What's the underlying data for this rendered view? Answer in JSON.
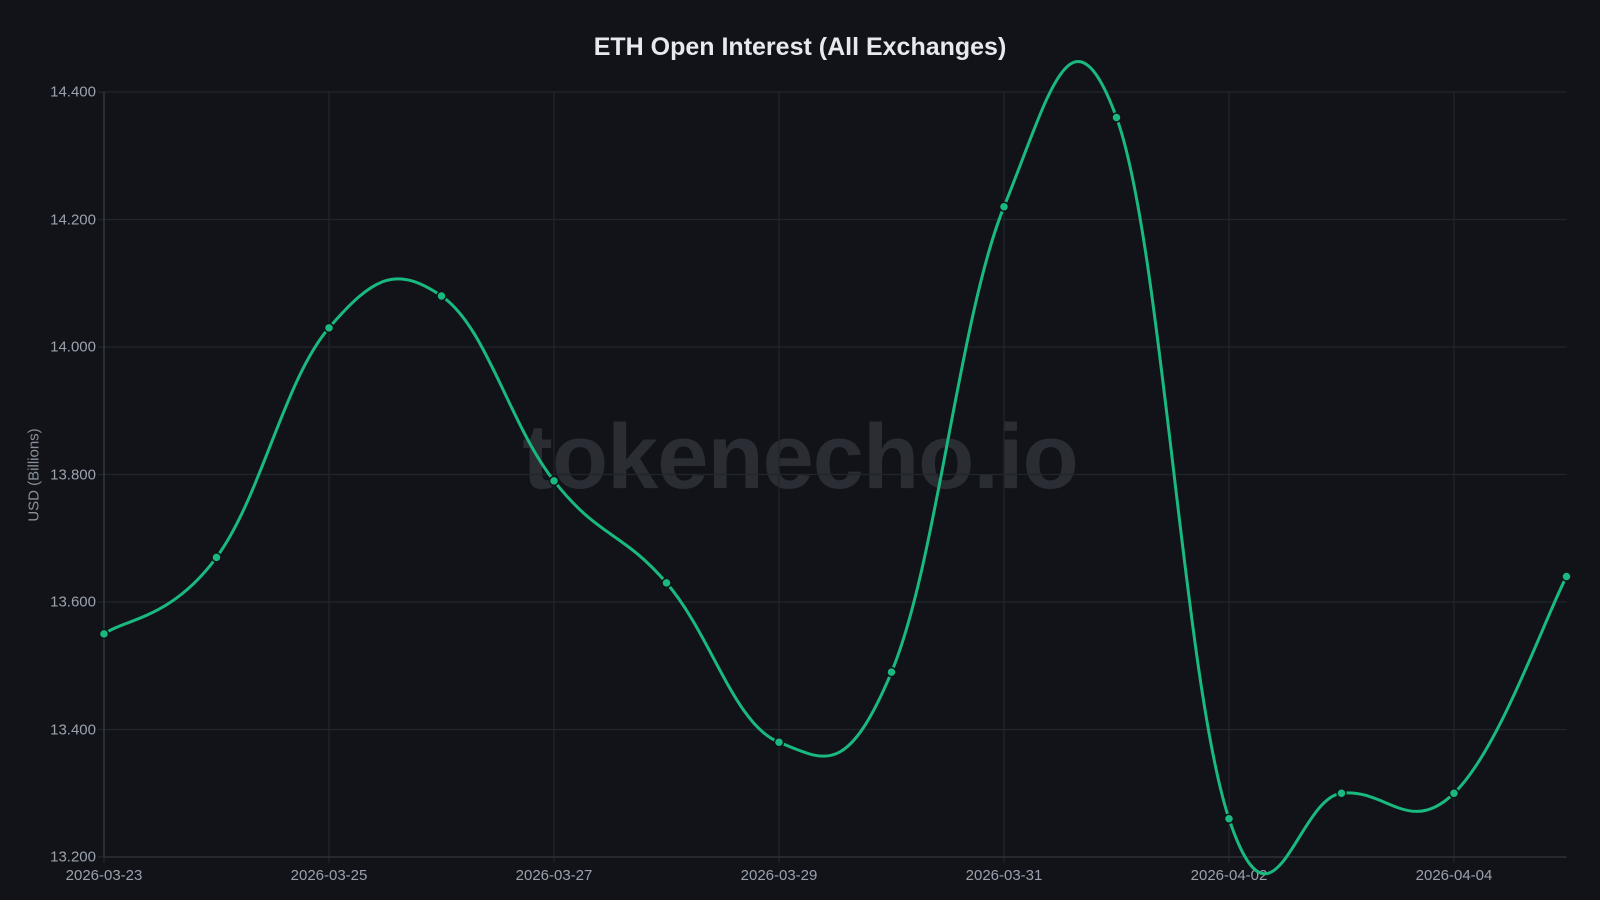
{
  "chart_data": {
    "type": "line",
    "title": "ETH Open Interest (All Exchanges)",
    "xlabel": "",
    "ylabel": "USD (Billions)",
    "watermark": "tokenecho.io",
    "x": [
      "2026-03-23",
      "2026-03-24",
      "2026-03-25",
      "2026-03-26",
      "2026-03-27",
      "2026-03-28",
      "2026-03-29",
      "2026-03-30",
      "2026-03-31",
      "2026-04-01",
      "2026-04-02",
      "2026-04-03",
      "2026-04-04",
      "2026-04-05"
    ],
    "series": [
      {
        "name": "ETH Open Interest",
        "color": "#19b97f",
        "values": [
          13.55,
          13.67,
          14.03,
          14.08,
          13.79,
          13.63,
          13.38,
          13.49,
          14.22,
          14.36,
          13.26,
          13.3,
          13.3,
          13.64
        ]
      }
    ],
    "x_tick_labels": [
      "2026-03-23",
      "2026-03-25",
      "2026-03-27",
      "2026-03-29",
      "2026-03-31",
      "2026-04-02",
      "2026-04-04"
    ],
    "y_tick_labels": [
      "14.400",
      "14.200",
      "14.000",
      "13.800",
      "13.600",
      "13.400",
      "13.200"
    ],
    "y_ticks": [
      14.4,
      14.2,
      14.0,
      13.8,
      13.6,
      13.4,
      13.2
    ],
    "ylim": [
      13.2,
      14.4
    ],
    "grid": true,
    "legend": "none"
  },
  "colors": {
    "background": "#111318",
    "grid": "#22262c",
    "axis": "#2f3a3a",
    "line": "#19b97f",
    "text": "#9aa1ad",
    "title": "#e6eaf0"
  }
}
